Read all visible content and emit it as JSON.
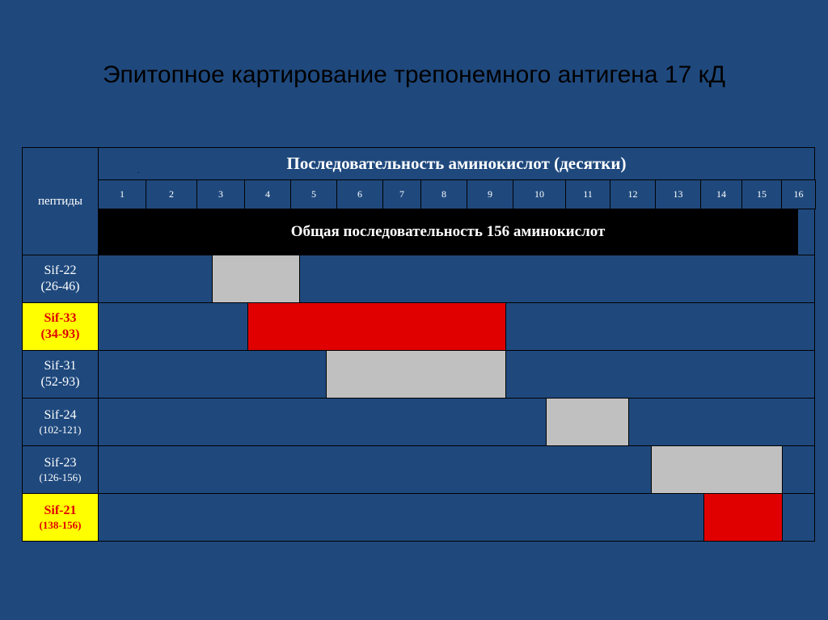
{
  "title": "Эпитопное картирование трепонемного антигена 17 кД",
  "table": {
    "peptides_label": "пептиды",
    "header": "Последовательность аминокислот (десятки)",
    "header_mark": ".",
    "columns": [
      "1",
      "2",
      "3",
      "4",
      "5",
      "6",
      "7",
      "8",
      "9",
      "10",
      "11",
      "12",
      "13",
      "14",
      "15",
      "16"
    ],
    "total_label": "Общая последовательность 156 аминокислот",
    "total_length": 156,
    "rows": [
      {
        "name": "Sif-22",
        "range": "(26-46)",
        "start": 26,
        "end": 46,
        "color": "#C0C0C0",
        "highlight": false
      },
      {
        "name": "Sif-33",
        "range": "(34-93)",
        "start": 34,
        "end": 93,
        "color": "#E00000",
        "highlight": true
      },
      {
        "name": "Sif-31",
        "range": "(52-93)",
        "start": 52,
        "end": 93,
        "color": "#C0C0C0",
        "highlight": false
      },
      {
        "name": "Sif-24",
        "range": "(102-121)",
        "start": 102,
        "end": 121,
        "color": "#C0C0C0",
        "highlight": false
      },
      {
        "name": "Sif-23",
        "range": "(126-156)",
        "start": 126,
        "end": 156,
        "color": "#C0C0C0",
        "highlight": false
      },
      {
        "name": "Sif-21",
        "range": "(138-156)",
        "start": 138,
        "end": 156,
        "color": "#E00000",
        "highlight": true
      }
    ]
  }
}
